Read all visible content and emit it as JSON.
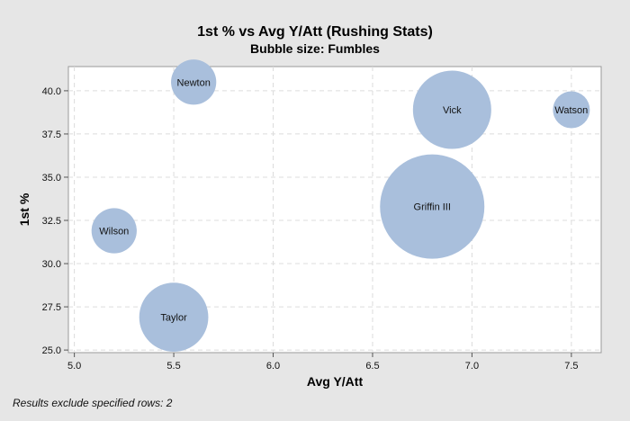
{
  "chart_data": {
    "type": "scatter",
    "title": "1st % vs Avg Y/Att (Rushing Stats)",
    "subtitle": "Bubble size: Fumbles",
    "xlabel": "Avg Y/Att",
    "ylabel": "1st %",
    "xlim": [
      4.97,
      7.65
    ],
    "ylim": [
      24.85,
      41.4
    ],
    "xticks": [
      "5.0",
      "5.5",
      "6.0",
      "6.5",
      "7.0",
      "7.5"
    ],
    "xtick_values": [
      5.0,
      5.5,
      6.0,
      6.5,
      7.0,
      7.5
    ],
    "yticks": [
      "25.0",
      "27.5",
      "30.0",
      "32.5",
      "35.0",
      "37.5",
      "40.0"
    ],
    "ytick_values": [
      25.0,
      27.5,
      30.0,
      32.5,
      35.0,
      37.5,
      40.0
    ],
    "grid": true,
    "bubble_color": "#a9bfdc",
    "points": [
      {
        "label": "Newton",
        "x": 5.6,
        "y": 40.5,
        "size": 3
      },
      {
        "label": "Vick",
        "x": 6.9,
        "y": 38.9,
        "size": 9
      },
      {
        "label": "Watson",
        "x": 7.5,
        "y": 38.9,
        "size": 2
      },
      {
        "label": "Griffin III",
        "x": 6.8,
        "y": 33.3,
        "size": 16
      },
      {
        "label": "Wilson",
        "x": 5.2,
        "y": 31.9,
        "size": 3
      },
      {
        "label": "Taylor",
        "x": 5.5,
        "y": 26.9,
        "size": 7
      }
    ]
  },
  "footnote": "Results exclude specified rows: 2"
}
